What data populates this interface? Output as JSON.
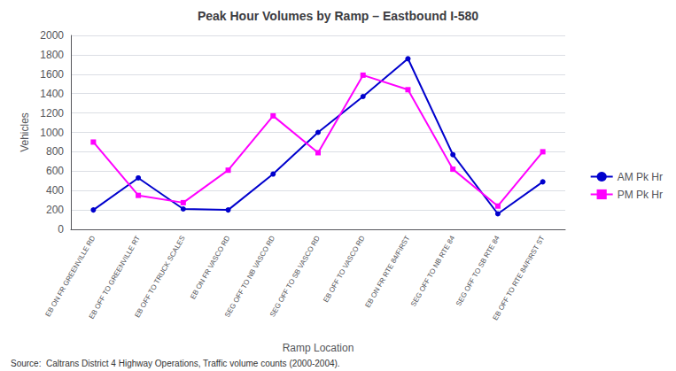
{
  "chart_data": {
    "type": "line",
    "title": "Peak Hour Volumes by Ramp – Eastbound I-580",
    "xlabel": "Ramp Location",
    "ylabel": "Vehicles",
    "annotations": [
      "Source:  Caltrans District 4 Highway Operations, Traffic volume counts (2000-2004)."
    ],
    "categories": [
      "EB ON FR GREENVILLE RD",
      "EB OFF TO GREENVILLE RT",
      "EB OFF TO TRUCK SCALES",
      "EB ON FR VASCO RD",
      "SEG OFF TO NB VASCO RD",
      "SEG OFF TO SB VASCO RD",
      "EB OFF TO VASCO RD",
      "EB ON FR RTE 84/FIRST",
      "SEG OFF TO NB RTE 84",
      "SEG OFF TO SB RTE 84",
      "EB OFF TO RTE 84/FIRST ST"
    ],
    "series": [
      {
        "name": "AM Pk Hr",
        "color": "#0000CD",
        "marker": "circle",
        "values": [
          200,
          530,
          210,
          200,
          570,
          1000,
          1370,
          1760,
          770,
          160,
          490
        ]
      },
      {
        "name": "PM Pk Hr",
        "color": "#FF00FF",
        "marker": "square",
        "values": [
          900,
          350,
          275,
          610,
          1170,
          790,
          1590,
          1440,
          620,
          240,
          800
        ]
      }
    ],
    "ylim": [
      0,
      2000
    ],
    "yticks": [
      0,
      200,
      400,
      600,
      800,
      1000,
      1200,
      1400,
      1600,
      1800,
      2000
    ],
    "grid": true,
    "legend": "right"
  }
}
